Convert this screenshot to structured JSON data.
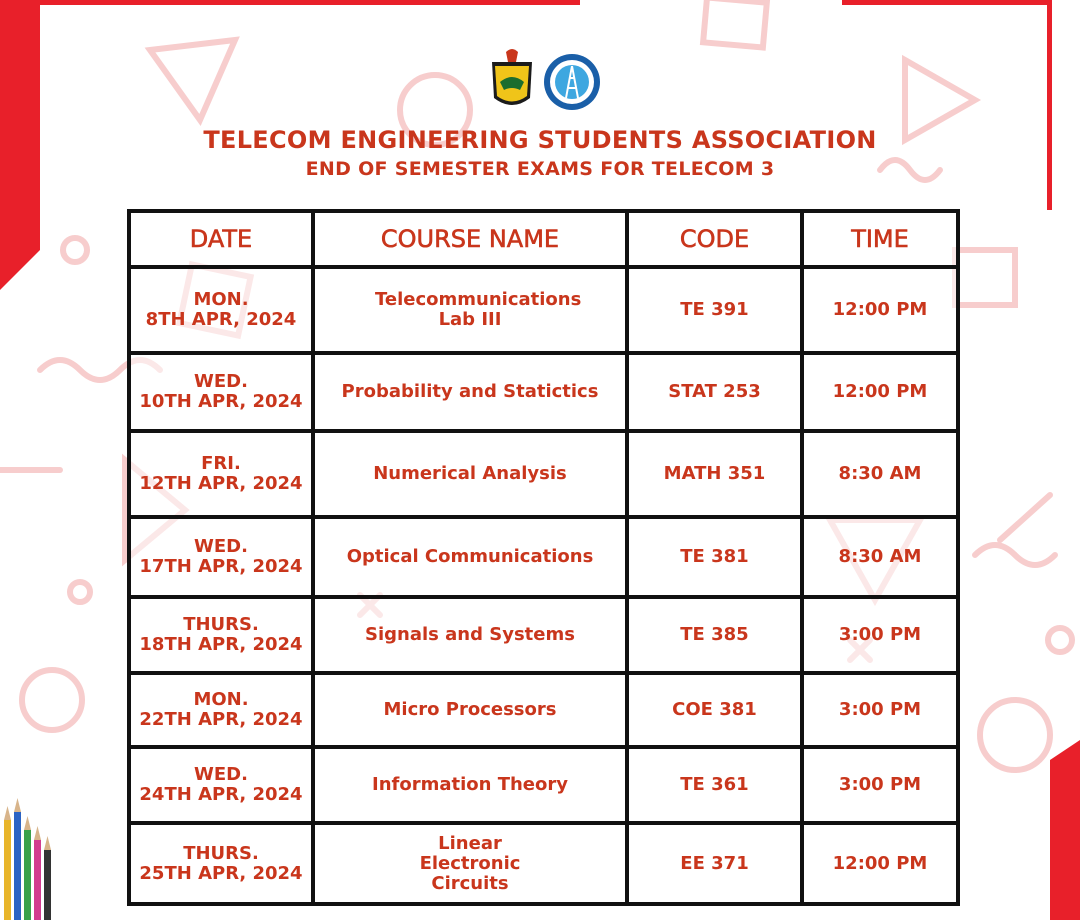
{
  "header": {
    "title": "TELECOM ENGINEERING STUDENTS ASSOCIATION",
    "subtitle": "END OF SEMESTER EXAMS FOR TELECOM 3"
  },
  "table": {
    "columns": [
      "DATE",
      "COURSE NAME",
      "CODE",
      "TIME"
    ],
    "rows": [
      {
        "day": "MON.",
        "date": "8TH APR, 2024",
        "course": "Telecommunications Lab III",
        "code": "TE 391",
        "time": "12:00 PM"
      },
      {
        "day": "WED.",
        "date": "10TH APR, 2024",
        "course": "Probability and Statictics",
        "code": "STAT 253",
        "time": "12:00 PM"
      },
      {
        "day": "FRI.",
        "date": "12TH APR, 2024",
        "course": "Numerical Analysis",
        "code": "MATH 351",
        "time": "8:30 AM"
      },
      {
        "day": "WED.",
        "date": "17TH APR, 2024",
        "course": "Optical Communications",
        "code": "TE 381",
        "time": "8:30 AM"
      },
      {
        "day": "THURS.",
        "date": "18TH APR, 2024",
        "course": "Signals and Systems",
        "code": "TE 385",
        "time": "3:00 PM"
      },
      {
        "day": "MON.",
        "date": "22TH APR, 2024",
        "course": "Micro Processors",
        "code": "COE 381",
        "time": "3:00 PM"
      },
      {
        "day": "WED.",
        "date": "24TH APR, 2024",
        "course": "Information Theory",
        "code": "TE 361",
        "time": "3:00 PM"
      },
      {
        "day": "THURS.",
        "date": "25TH APR, 2024",
        "course": "Linear Electronic Circuits",
        "code": "EE 371",
        "time": "12:00 PM"
      }
    ]
  },
  "colors": {
    "accent": "#c9361c",
    "border": "#111111",
    "background_shapes": "#f6c9c9",
    "frame_red": "#e8202a"
  }
}
